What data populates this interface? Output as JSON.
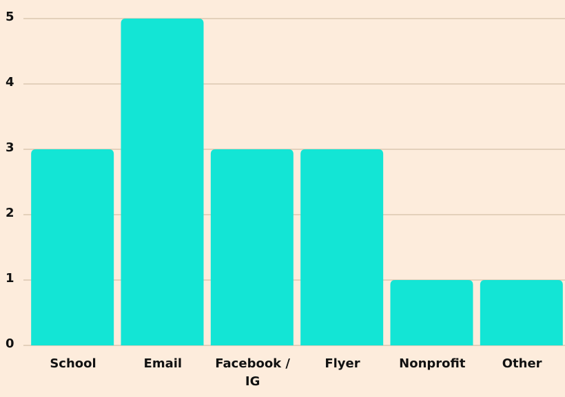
{
  "chart_data": {
    "type": "bar",
    "categories": [
      "School",
      "Email",
      "Facebook / IG",
      "Flyer",
      "Nonprofit",
      "Other"
    ],
    "values": [
      3,
      5,
      3,
      3,
      1,
      1
    ],
    "color": "#13e5d5",
    "ylim": [
      0,
      5
    ],
    "yticks": [
      0,
      1,
      2,
      3,
      4,
      5
    ],
    "grid": true
  }
}
